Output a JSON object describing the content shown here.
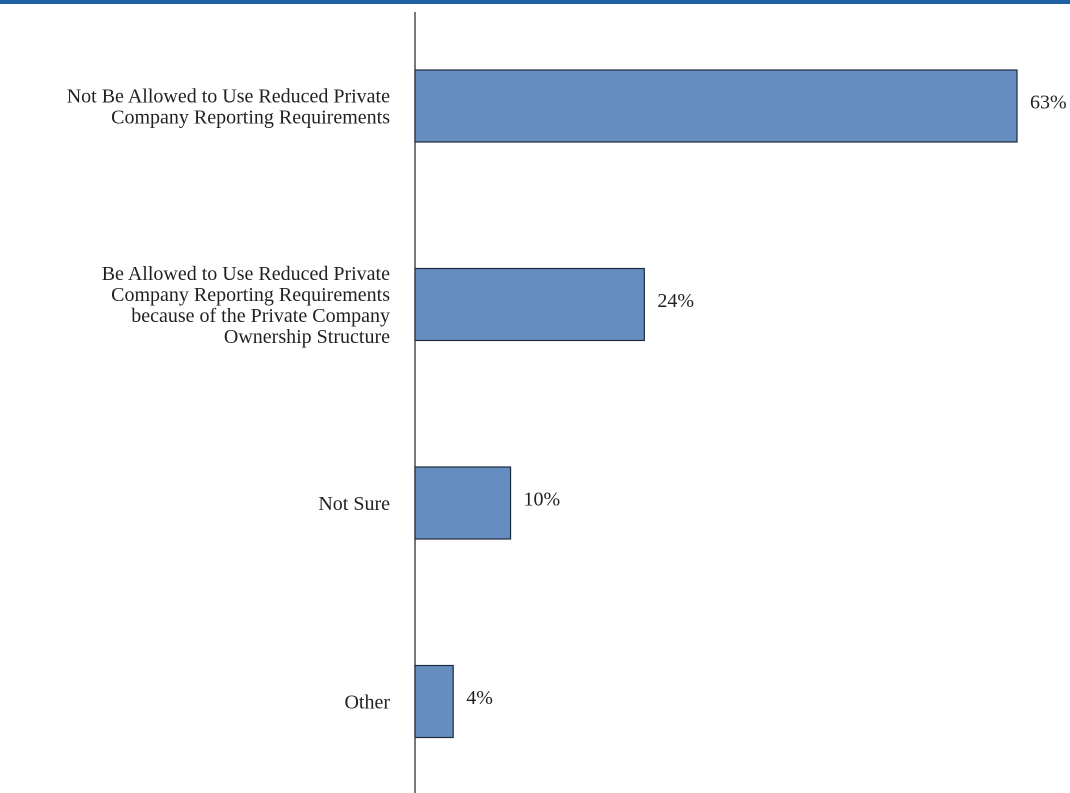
{
  "colors": {
    "bar_fill": "#668dc0",
    "bar_stroke": "#1f2a3c",
    "axis": "#231f20",
    "top_rule": "#1f5fa6"
  },
  "chart_data": {
    "type": "bar",
    "orientation": "horizontal",
    "categories": [
      "Not Be Allowed to Use Reduced Private Company Reporting Requirements",
      "Be Allowed to Use Reduced Private Company Reporting Requirements because of the Private Company Ownership Structure",
      "Not Sure",
      "Other"
    ],
    "category_label_lines": [
      [
        "Not Be Allowed to Use Reduced Private",
        "Company Reporting Requirements"
      ],
      [
        "Be Allowed to Use Reduced Private",
        "Company Reporting Requirements",
        "because of the Private Company",
        "Ownership Structure"
      ],
      [
        "Not Sure"
      ],
      [
        "Other"
      ]
    ],
    "values": [
      63,
      24,
      10,
      4
    ],
    "value_labels": [
      "63%",
      "24%",
      "10%",
      "4%"
    ],
    "unit": "%",
    "xlim": [
      0,
      63
    ],
    "grid": false,
    "legend": "none"
  }
}
